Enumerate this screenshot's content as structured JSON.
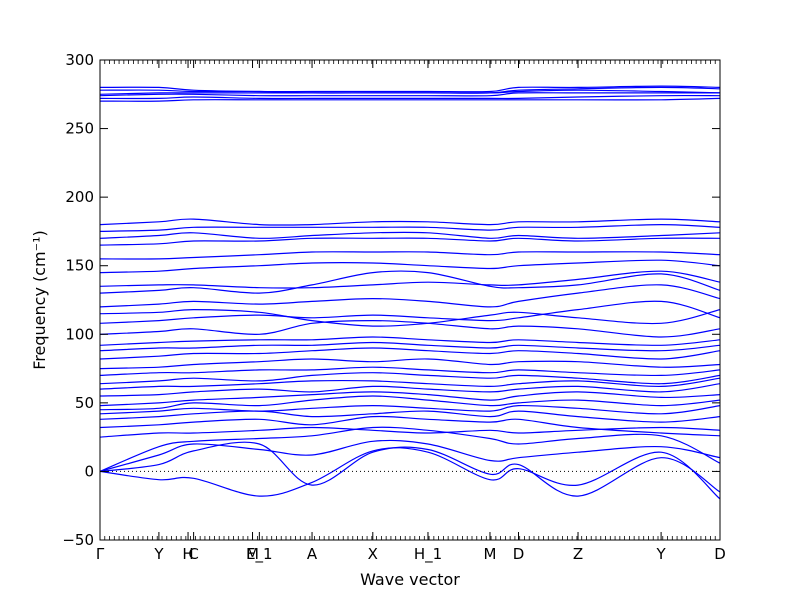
{
  "chart_data": {
    "type": "line",
    "xlabel": "Wave vector",
    "ylabel": "Frequency (cm⁻¹)",
    "ylim": [
      -50,
      300
    ],
    "yticks": [
      -50,
      0,
      50,
      100,
      150,
      200,
      250,
      300
    ],
    "grid": false,
    "zero_line": {
      "y": 0,
      "style": "dotted"
    },
    "line_color": "#0000ff",
    "high_symmetry_points": [
      {
        "label": "Γ",
        "x": 0
      },
      {
        "label": "Y",
        "x": 0.095
      },
      {
        "label": "H",
        "x": 0.142
      },
      {
        "label": "C",
        "x": 0.151
      },
      {
        "label": "M",
        "x": 0.246
      },
      {
        "label": "E_1",
        "x": 0.257
      },
      {
        "label": "A",
        "x": 0.342
      },
      {
        "label": "X",
        "x": 0.44
      },
      {
        "label": "H_1",
        "x": 0.529
      },
      {
        "label": "M",
        "x": 0.629
      },
      {
        "label": "D",
        "x": 0.675
      },
      {
        "label": "Z",
        "x": 0.771
      },
      {
        "label": "Y",
        "x": 0.905
      },
      {
        "label": "D",
        "x": 1.0
      }
    ],
    "bands_knots_x": [
      0,
      0.095,
      0.151,
      0.257,
      0.342,
      0.44,
      0.529,
      0.629,
      0.675,
      0.771,
      0.905,
      1.0
    ],
    "bands": [
      [
        0,
        12,
        20,
        16,
        12,
        22,
        20,
        8,
        10,
        14,
        18,
        10
      ],
      [
        0,
        18,
        22,
        24,
        26,
        32,
        30,
        24,
        20,
        24,
        26,
        6
      ],
      [
        0,
        -6,
        -5,
        -18,
        -8,
        15,
        14,
        -6,
        2,
        -10,
        14,
        -20
      ],
      [
        0,
        5,
        15,
        20,
        -10,
        14,
        16,
        -2,
        5,
        -18,
        10,
        -15
      ],
      [
        25,
        28,
        28,
        30,
        32,
        30,
        28,
        30,
        28,
        30,
        32,
        30
      ],
      [
        32,
        34,
        36,
        38,
        34,
        40,
        38,
        36,
        38,
        32,
        28,
        26
      ],
      [
        38,
        40,
        42,
        44,
        40,
        42,
        44,
        40,
        44,
        40,
        36,
        40
      ],
      [
        42,
        44,
        46,
        44,
        46,
        48,
        46,
        44,
        48,
        46,
        42,
        48
      ],
      [
        45,
        46,
        50,
        48,
        52,
        55,
        52,
        48,
        50,
        52,
        48,
        52
      ],
      [
        48,
        50,
        52,
        54,
        56,
        58,
        56,
        52,
        55,
        58,
        54,
        56
      ],
      [
        55,
        56,
        58,
        60,
        58,
        62,
        60,
        58,
        60,
        62,
        58,
        64
      ],
      [
        60,
        62,
        62,
        64,
        66,
        66,
        64,
        62,
        64,
        66,
        62,
        68
      ],
      [
        64,
        66,
        68,
        66,
        70,
        72,
        70,
        68,
        70,
        68,
        64,
        70
      ],
      [
        70,
        72,
        72,
        74,
        74,
        76,
        74,
        72,
        74,
        72,
        70,
        74
      ],
      [
        75,
        76,
        78,
        80,
        82,
        80,
        82,
        78,
        80,
        80,
        76,
        78
      ],
      [
        82,
        84,
        86,
        86,
        88,
        90,
        88,
        86,
        88,
        86,
        82,
        88
      ],
      [
        88,
        90,
        90,
        92,
        92,
        94,
        92,
        90,
        92,
        90,
        88,
        92
      ],
      [
        92,
        94,
        95,
        96,
        96,
        98,
        96,
        94,
        96,
        94,
        92,
        96
      ],
      [
        100,
        102,
        104,
        100,
        108,
        110,
        108,
        104,
        106,
        104,
        98,
        104
      ],
      [
        108,
        110,
        112,
        114,
        112,
        114,
        112,
        110,
        112,
        118,
        124,
        112
      ],
      [
        115,
        116,
        118,
        116,
        110,
        106,
        108,
        114,
        116,
        112,
        108,
        118
      ],
      [
        120,
        122,
        124,
        122,
        124,
        126,
        124,
        120,
        124,
        130,
        136,
        126
      ],
      [
        130,
        132,
        134,
        130,
        136,
        145,
        145,
        135,
        134,
        136,
        144,
        132
      ],
      [
        135,
        136,
        136,
        134,
        134,
        136,
        138,
        136,
        136,
        140,
        146,
        138
      ],
      [
        145,
        146,
        148,
        150,
        152,
        152,
        150,
        148,
        150,
        152,
        154,
        150
      ],
      [
        155,
        155,
        156,
        158,
        160,
        160,
        160,
        158,
        160,
        160,
        160,
        158
      ],
      [
        165,
        166,
        168,
        168,
        170,
        170,
        170,
        168,
        170,
        168,
        170,
        170
      ],
      [
        170,
        172,
        174,
        170,
        172,
        174,
        174,
        170,
        172,
        170,
        172,
        174
      ],
      [
        175,
        176,
        178,
        178,
        178,
        178,
        178,
        176,
        178,
        178,
        180,
        178
      ],
      [
        180,
        182,
        184,
        180,
        180,
        182,
        182,
        180,
        182,
        182,
        184,
        182
      ],
      [
        270,
        270,
        271,
        271,
        271,
        271,
        271,
        271,
        271,
        271,
        271,
        272
      ],
      [
        272,
        272,
        273,
        272,
        272,
        272,
        272,
        272,
        272,
        273,
        274,
        274
      ],
      [
        274,
        275,
        275,
        274,
        274,
        274,
        274,
        274,
        276,
        276,
        276,
        276
      ],
      [
        275,
        276,
        276,
        276,
        276,
        276,
        276,
        276,
        277,
        278,
        277,
        276
      ],
      [
        278,
        278,
        277,
        277,
        276,
        276,
        276,
        276,
        278,
        279,
        280,
        279
      ],
      [
        280,
        280,
        278,
        277,
        277,
        277,
        277,
        277,
        280,
        280,
        281,
        280
      ]
    ]
  }
}
